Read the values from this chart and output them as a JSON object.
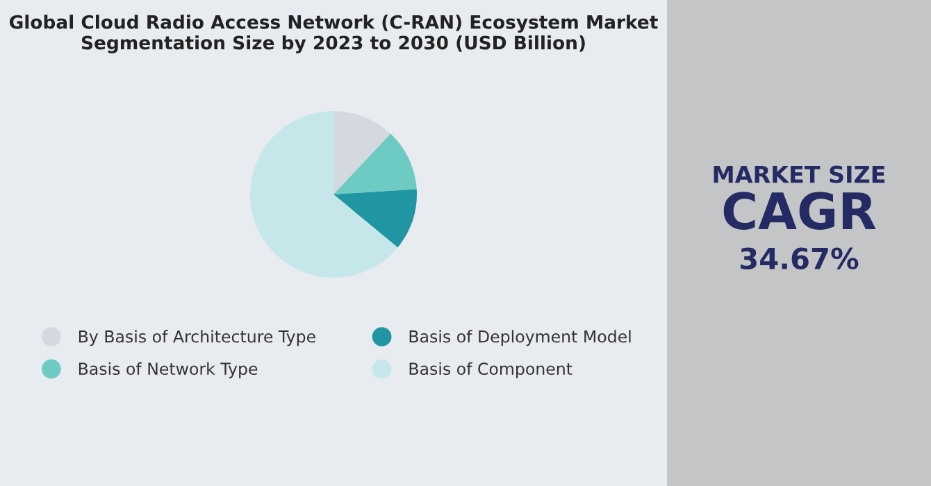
{
  "chart_data": {
    "type": "pie",
    "title": "Global Cloud Radio Access Network (C-RAN) Ecosystem Market Segmentation Size by 2023 to 2030 (USD Billion)",
    "categories": [
      "By Basis of Architecture Type",
      "Basis of Network Type",
      "Basis of Deployment Model",
      "Basis of Component"
    ],
    "values": [
      12,
      12,
      12,
      64
    ],
    "colors": [
      "#d3d9df",
      "#6ecbc4",
      "#2096a2",
      "#c5e7ea"
    ],
    "legend": "bottom",
    "annotations": [
      "MARKET SIZE",
      "CAGR",
      "34.67%"
    ]
  }
}
